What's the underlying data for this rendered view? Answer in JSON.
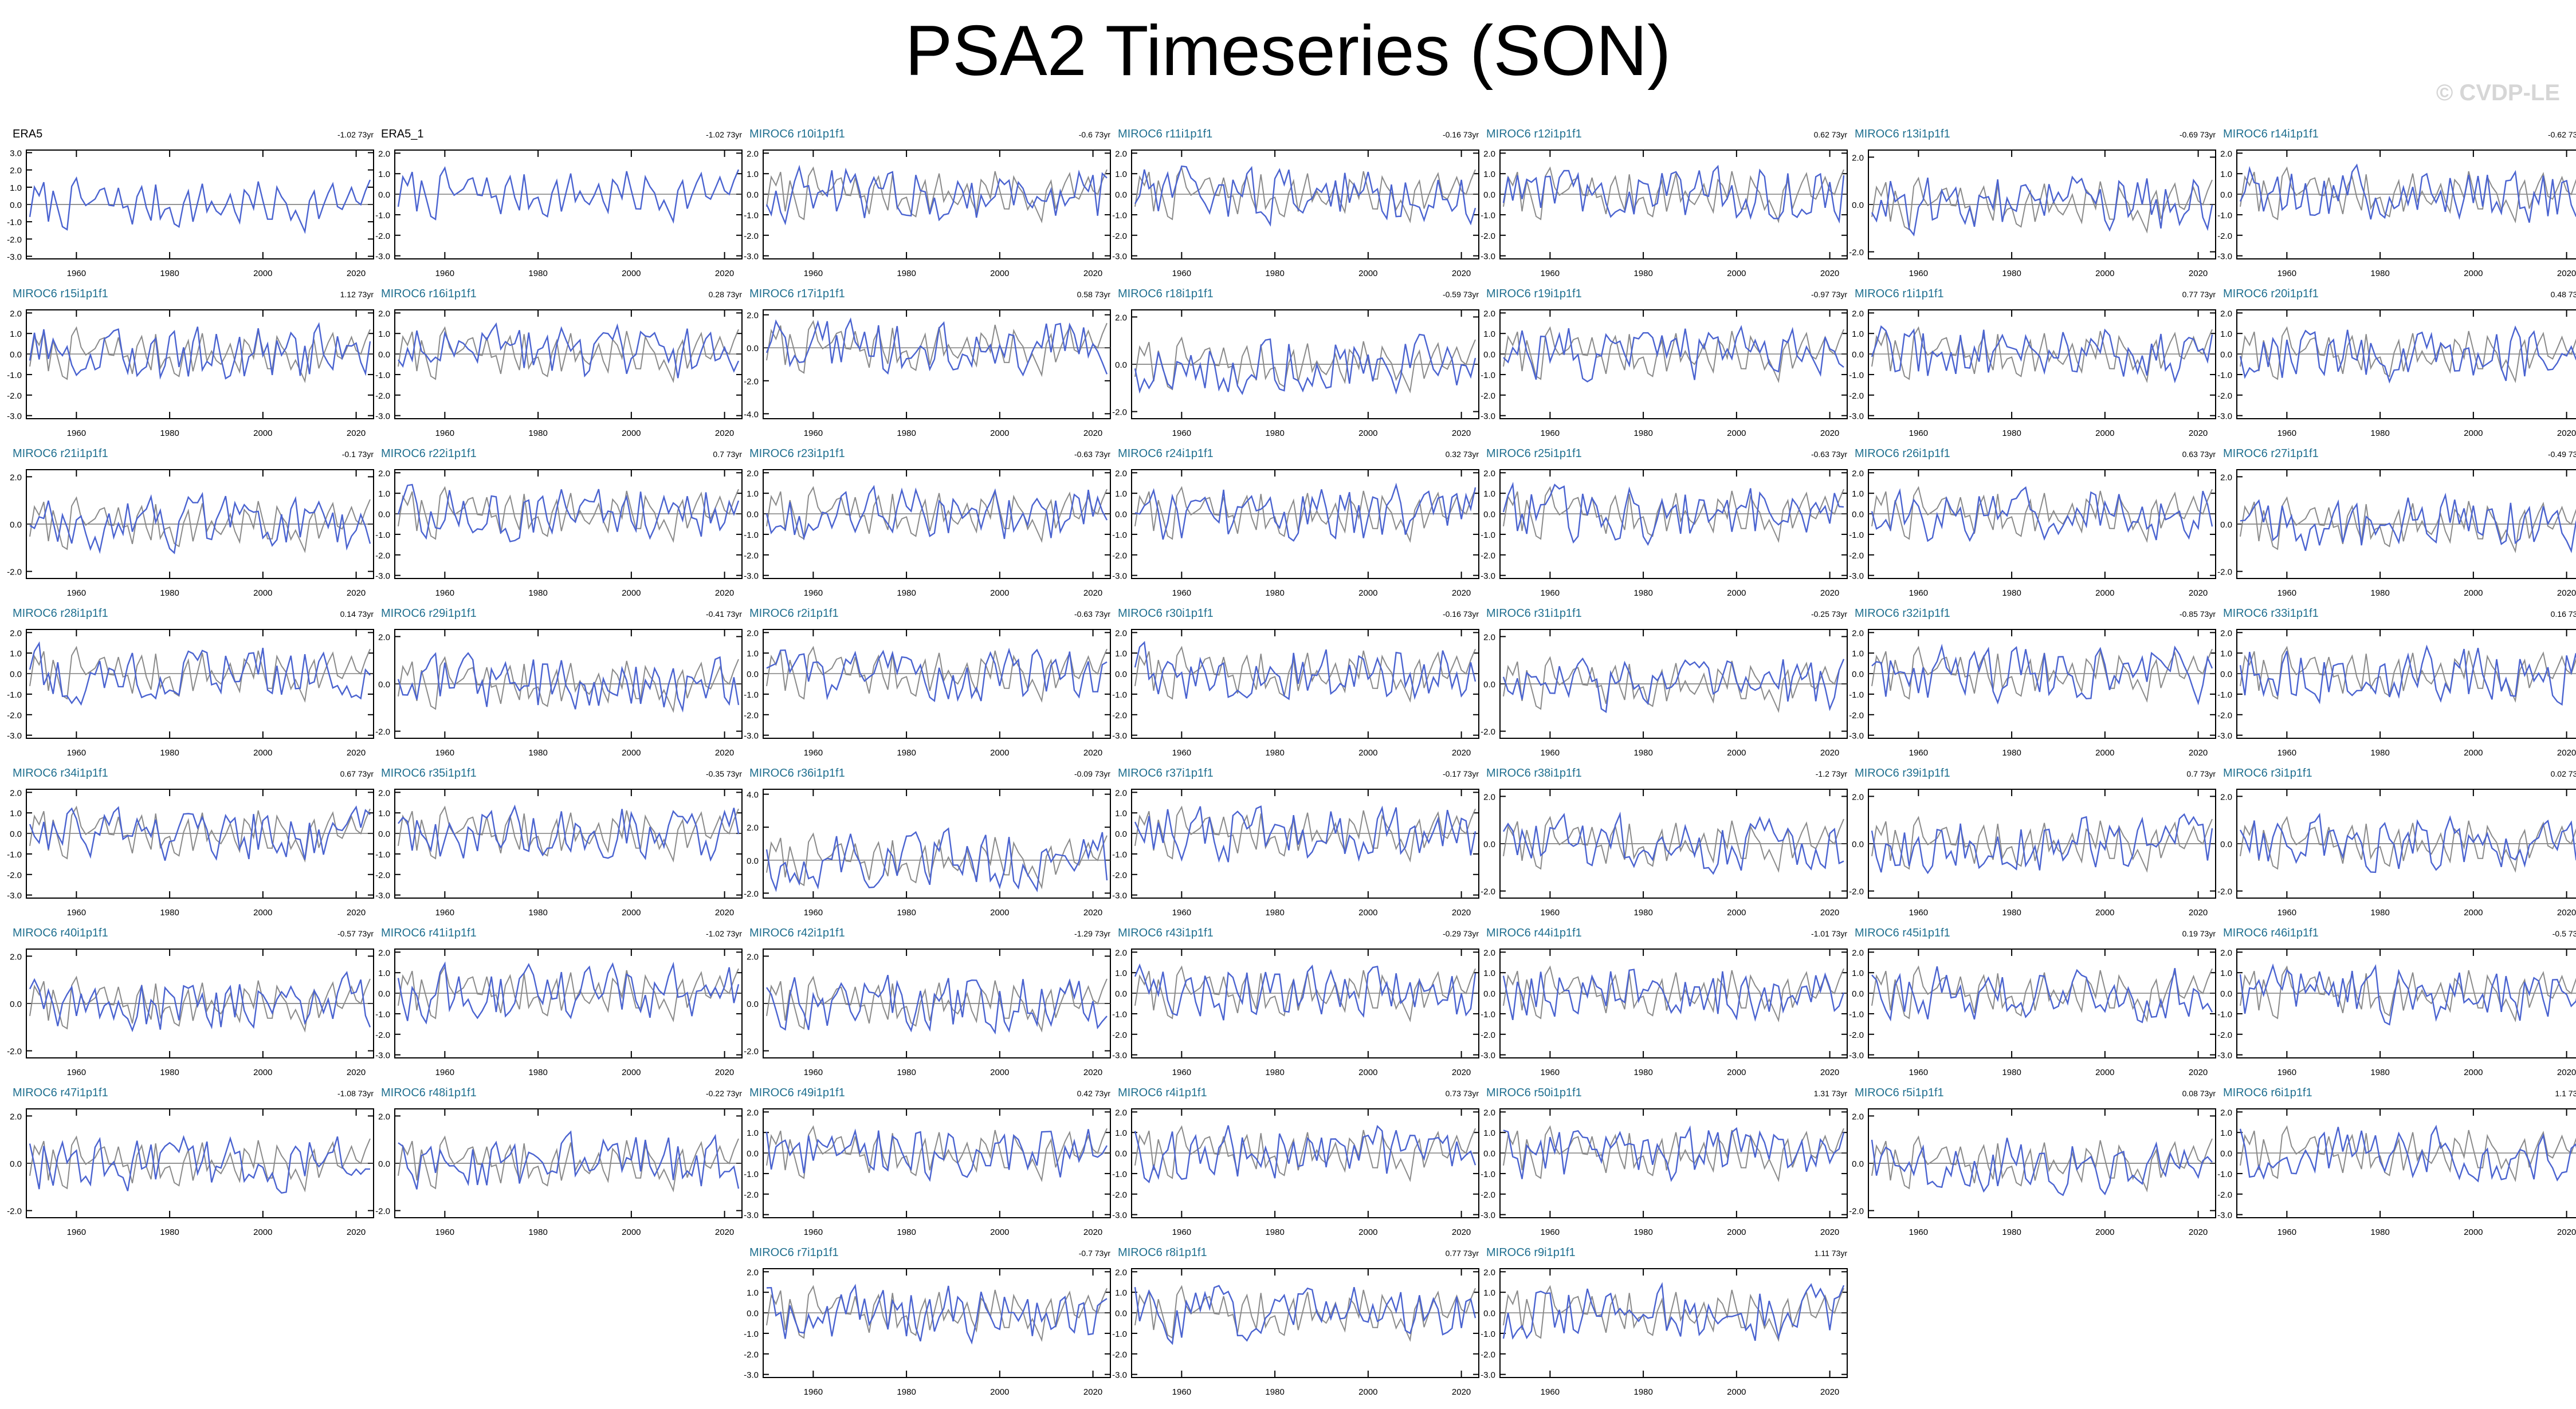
{
  "page": {
    "title": "PSA2 Timeseries (SON)",
    "copyright": "© CVDP-LE"
  },
  "colors": {
    "obs_line": "#8a8a8a",
    "model_line": "#4a63d0",
    "obs_title": "#000000",
    "model_title": "#1f6f8f",
    "axis": "#000000"
  },
  "chart_data": {
    "type": "line",
    "x_ticks": [
      1960,
      1980,
      2000,
      2020
    ],
    "xlim": [
      1950,
      2023
    ],
    "series_note": "",
    "panels": [
      {
        "title": "ERA5",
        "trend": "-1.02",
        "yticks": [
          "3.0",
          "2.0",
          "1.0",
          "0.0",
          "-1.0",
          "-2.0",
          "-3.0"
        ]
      },
      {
        "title": "ERA5_1",
        "trend": "-1.02",
        "yticks": [
          "2.0",
          "1.0",
          "0.0",
          "-1.0",
          "-2.0",
          "-3.0"
        ]
      },
      {
        "title": "MIROC6 r10i1p1f1",
        "trend": "-0.6",
        "yticks": [
          "2.0",
          "1.0",
          "0.0",
          "-1.0",
          "-2.0",
          "-3.0"
        ]
      },
      {
        "title": "MIROC6 r11i1p1f1",
        "trend": "-0.16",
        "yticks": [
          "2.0",
          "1.0",
          "0.0",
          "-1.0",
          "-2.0",
          "-3.0"
        ]
      },
      {
        "title": "MIROC6 r12i1p1f1",
        "trend": "0.62",
        "yticks": [
          "2.0",
          "1.0",
          "0.0",
          "-1.0",
          "-2.0",
          "-3.0"
        ]
      },
      {
        "title": "MIROC6 r13i1p1f1",
        "trend": "-0.69",
        "yticks": [
          "2.0",
          "0.0",
          "-2.0"
        ]
      },
      {
        "title": "MIROC6 r14i1p1f1",
        "trend": "-0.62",
        "yticks": [
          "2.0",
          "1.0",
          "0.0",
          "-1.0",
          "-2.0",
          "-3.0"
        ]
      },
      {
        "title": "MIROC6 r15i1p1f1",
        "trend": "1.12",
        "yticks": [
          "2.0",
          "1.0",
          "0.0",
          "-1.0",
          "-2.0",
          "-3.0"
        ]
      },
      {
        "title": "MIROC6 r16i1p1f1",
        "trend": "0.28",
        "yticks": [
          "2.0",
          "1.0",
          "0.0",
          "-1.0",
          "-2.0",
          "-3.0"
        ]
      },
      {
        "title": "MIROC6 r17i1p1f1",
        "trend": "0.58",
        "yticks": [
          "2.0",
          "0.0",
          "-2.0",
          "-4.0"
        ]
      },
      {
        "title": "MIROC6 r18i1p1f1",
        "trend": "-0.59",
        "yticks": [
          "2.0",
          "0.0",
          "-2.0"
        ]
      },
      {
        "title": "MIROC6 r19i1p1f1",
        "trend": "-0.97",
        "yticks": [
          "2.0",
          "1.0",
          "0.0",
          "-1.0",
          "-2.0",
          "-3.0"
        ]
      },
      {
        "title": "MIROC6 r1i1p1f1",
        "trend": "0.77",
        "yticks": [
          "2.0",
          "1.0",
          "0.0",
          "-1.0",
          "-2.0",
          "-3.0"
        ]
      },
      {
        "title": "MIROC6 r20i1p1f1",
        "trend": "0.48",
        "yticks": [
          "2.0",
          "1.0",
          "0.0",
          "-1.0",
          "-2.0",
          "-3.0"
        ]
      },
      {
        "title": "MIROC6 r21i1p1f1",
        "trend": "-0.1",
        "yticks": [
          "2.0",
          "0.0",
          "-2.0"
        ]
      },
      {
        "title": "MIROC6 r22i1p1f1",
        "trend": "0.7",
        "yticks": [
          "2.0",
          "1.0",
          "0.0",
          "-1.0",
          "-2.0",
          "-3.0"
        ]
      },
      {
        "title": "MIROC6 r23i1p1f1",
        "trend": "-0.63",
        "yticks": [
          "2.0",
          "1.0",
          "0.0",
          "-1.0",
          "-2.0",
          "-3.0"
        ]
      },
      {
        "title": "MIROC6 r24i1p1f1",
        "trend": "0.32",
        "yticks": [
          "2.0",
          "1.0",
          "0.0",
          "-1.0",
          "-2.0",
          "-3.0"
        ]
      },
      {
        "title": "MIROC6 r25i1p1f1",
        "trend": "-0.63",
        "yticks": [
          "2.0",
          "1.0",
          "0.0",
          "-1.0",
          "-2.0",
          "-3.0"
        ]
      },
      {
        "title": "MIROC6 r26i1p1f1",
        "trend": "0.63",
        "yticks": [
          "2.0",
          "1.0",
          "0.0",
          "-1.0",
          "-2.0",
          "-3.0"
        ]
      },
      {
        "title": "MIROC6 r27i1p1f1",
        "trend": "-0.49",
        "yticks": [
          "2.0",
          "0.0",
          "-2.0"
        ]
      },
      {
        "title": "MIROC6 r28i1p1f1",
        "trend": "0.14",
        "yticks": [
          "2.0",
          "1.0",
          "0.0",
          "-1.0",
          "-2.0",
          "-3.0"
        ]
      },
      {
        "title": "MIROC6 r29i1p1f1",
        "trend": "-0.41",
        "yticks": [
          "2.0",
          "0.0",
          "-2.0"
        ]
      },
      {
        "title": "MIROC6 r2i1p1f1",
        "trend": "-0.63",
        "yticks": [
          "2.0",
          "1.0",
          "0.0",
          "-1.0",
          "-2.0",
          "-3.0"
        ]
      },
      {
        "title": "MIROC6 r30i1p1f1",
        "trend": "-0.16",
        "yticks": [
          "2.0",
          "1.0",
          "0.0",
          "-1.0",
          "-2.0",
          "-3.0"
        ]
      },
      {
        "title": "MIROC6 r31i1p1f1",
        "trend": "-0.25",
        "yticks": [
          "2.0",
          "0.0",
          "-2.0"
        ]
      },
      {
        "title": "MIROC6 r32i1p1f1",
        "trend": "-0.85",
        "yticks": [
          "2.0",
          "1.0",
          "0.0",
          "-1.0",
          "-2.0",
          "-3.0"
        ]
      },
      {
        "title": "MIROC6 r33i1p1f1",
        "trend": "0.16",
        "yticks": [
          "2.0",
          "1.0",
          "0.0",
          "-1.0",
          "-2.0",
          "-3.0"
        ]
      },
      {
        "title": "MIROC6 r34i1p1f1",
        "trend": "0.67",
        "yticks": [
          "2.0",
          "1.0",
          "0.0",
          "-1.0",
          "-2.0",
          "-3.0"
        ]
      },
      {
        "title": "MIROC6 r35i1p1f1",
        "trend": "-0.35",
        "yticks": [
          "2.0",
          "1.0",
          "0.0",
          "-1.0",
          "-2.0",
          "-3.0"
        ]
      },
      {
        "title": "MIROC6 r36i1p1f1",
        "trend": "-0.09",
        "yticks": [
          "4.0",
          "2.0",
          "0.0",
          "-2.0"
        ]
      },
      {
        "title": "MIROC6 r37i1p1f1",
        "trend": "-0.17",
        "yticks": [
          "2.0",
          "1.0",
          "0.0",
          "-1.0",
          "-2.0",
          "-3.0"
        ]
      },
      {
        "title": "MIROC6 r38i1p1f1",
        "trend": "-1.2",
        "yticks": [
          "2.0",
          "0.0",
          "-2.0"
        ]
      },
      {
        "title": "MIROC6 r39i1p1f1",
        "trend": "0.7",
        "yticks": [
          "2.0",
          "0.0",
          "-2.0"
        ]
      },
      {
        "title": "MIROC6 r3i1p1f1",
        "trend": "0.02",
        "yticks": [
          "2.0",
          "0.0",
          "-2.0"
        ]
      },
      {
        "title": "MIROC6 r40i1p1f1",
        "trend": "-0.57",
        "yticks": [
          "2.0",
          "0.0",
          "-2.0"
        ]
      },
      {
        "title": "MIROC6 r41i1p1f1",
        "trend": "-1.02",
        "yticks": [
          "2.0",
          "1.0",
          "0.0",
          "-1.0",
          "-2.0",
          "-3.0"
        ]
      },
      {
        "title": "MIROC6 r42i1p1f1",
        "trend": "-1.29",
        "yticks": [
          "2.0",
          "0.0",
          "-2.0"
        ]
      },
      {
        "title": "MIROC6 r43i1p1f1",
        "trend": "-0.29",
        "yticks": [
          "2.0",
          "1.0",
          "0.0",
          "-1.0",
          "-2.0",
          "-3.0"
        ]
      },
      {
        "title": "MIROC6 r44i1p1f1",
        "trend": "-1.01",
        "yticks": [
          "2.0",
          "1.0",
          "0.0",
          "-1.0",
          "-2.0",
          "-3.0"
        ]
      },
      {
        "title": "MIROC6 r45i1p1f1",
        "trend": "0.19",
        "yticks": [
          "2.0",
          "1.0",
          "0.0",
          "-1.0",
          "-2.0",
          "-3.0"
        ]
      },
      {
        "title": "MIROC6 r46i1p1f1",
        "trend": "-0.5",
        "yticks": [
          "2.0",
          "1.0",
          "0.0",
          "-1.0",
          "-2.0",
          "-3.0"
        ]
      },
      {
        "title": "MIROC6 r47i1p1f1",
        "trend": "-1.08",
        "yticks": [
          "2.0",
          "0.0",
          "-2.0"
        ]
      },
      {
        "title": "MIROC6 r48i1p1f1",
        "trend": "-0.22",
        "yticks": [
          "2.0",
          "0.0",
          "-2.0"
        ]
      },
      {
        "title": "MIROC6 r49i1p1f1",
        "trend": "0.42",
        "yticks": [
          "2.0",
          "1.0",
          "0.0",
          "-1.0",
          "-2.0",
          "-3.0"
        ]
      },
      {
        "title": "MIROC6 r4i1p1f1",
        "trend": "0.73",
        "yticks": [
          "2.0",
          "1.0",
          "0.0",
          "-1.0",
          "-2.0",
          "-3.0"
        ]
      },
      {
        "title": "MIROC6 r50i1p1f1",
        "trend": "1.31",
        "yticks": [
          "2.0",
          "1.0",
          "0.0",
          "-1.0",
          "-2.0",
          "-3.0"
        ]
      },
      {
        "title": "MIROC6 r5i1p1f1",
        "trend": "0.08",
        "yticks": [
          "2.0",
          "0.0",
          "-2.0"
        ]
      },
      {
        "title": "MIROC6 r6i1p1f1",
        "trend": "1.1",
        "yticks": [
          "2.0",
          "1.0",
          "0.0",
          "-1.0",
          "-2.0",
          "-3.0"
        ]
      },
      {
        "title": "MIROC6 r7i1p1f1",
        "trend": "-0.7",
        "yticks": [
          "2.0",
          "1.0",
          "0.0",
          "-1.0",
          "-2.0",
          "-3.0"
        ]
      },
      {
        "title": "MIROC6 r8i1p1f1",
        "trend": "0.77",
        "yticks": [
          "2.0",
          "1.0",
          "0.0",
          "-1.0",
          "-2.0",
          "-3.0"
        ]
      },
      {
        "title": "MIROC6 r9i1p1f1",
        "trend": "1.11",
        "yticks": [
          "2.0",
          "1.0",
          "0.0",
          "-1.0",
          "-2.0",
          "-3.0"
        ]
      }
    ]
  }
}
